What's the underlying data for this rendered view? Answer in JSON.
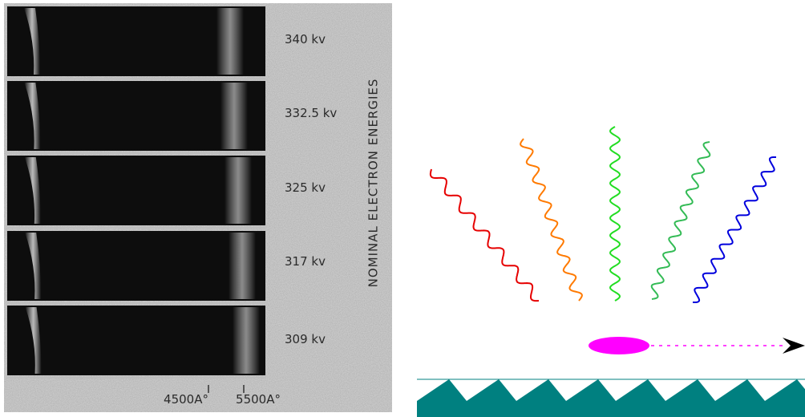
{
  "left_panel": {
    "vertical_label": "NOMINAL ELECTRON ENERGIES",
    "spectra": [
      {
        "energy": "340 kv"
      },
      {
        "energy": "332.5 kv"
      },
      {
        "energy": "325 kv"
      },
      {
        "energy": "317 kv"
      },
      {
        "energy": "309 kv"
      }
    ],
    "wavelength_marks": [
      "4500A°",
      "5500A°"
    ]
  },
  "right_panel": {
    "waves": [
      {
        "color": "#e60000"
      },
      {
        "color": "#ff7a00"
      },
      {
        "color": "#22dd22"
      },
      {
        "color": "#33bb55"
      },
      {
        "color": "#0000dd"
      }
    ],
    "particle_color": "#ff00ff",
    "grating_color": "#008080"
  }
}
